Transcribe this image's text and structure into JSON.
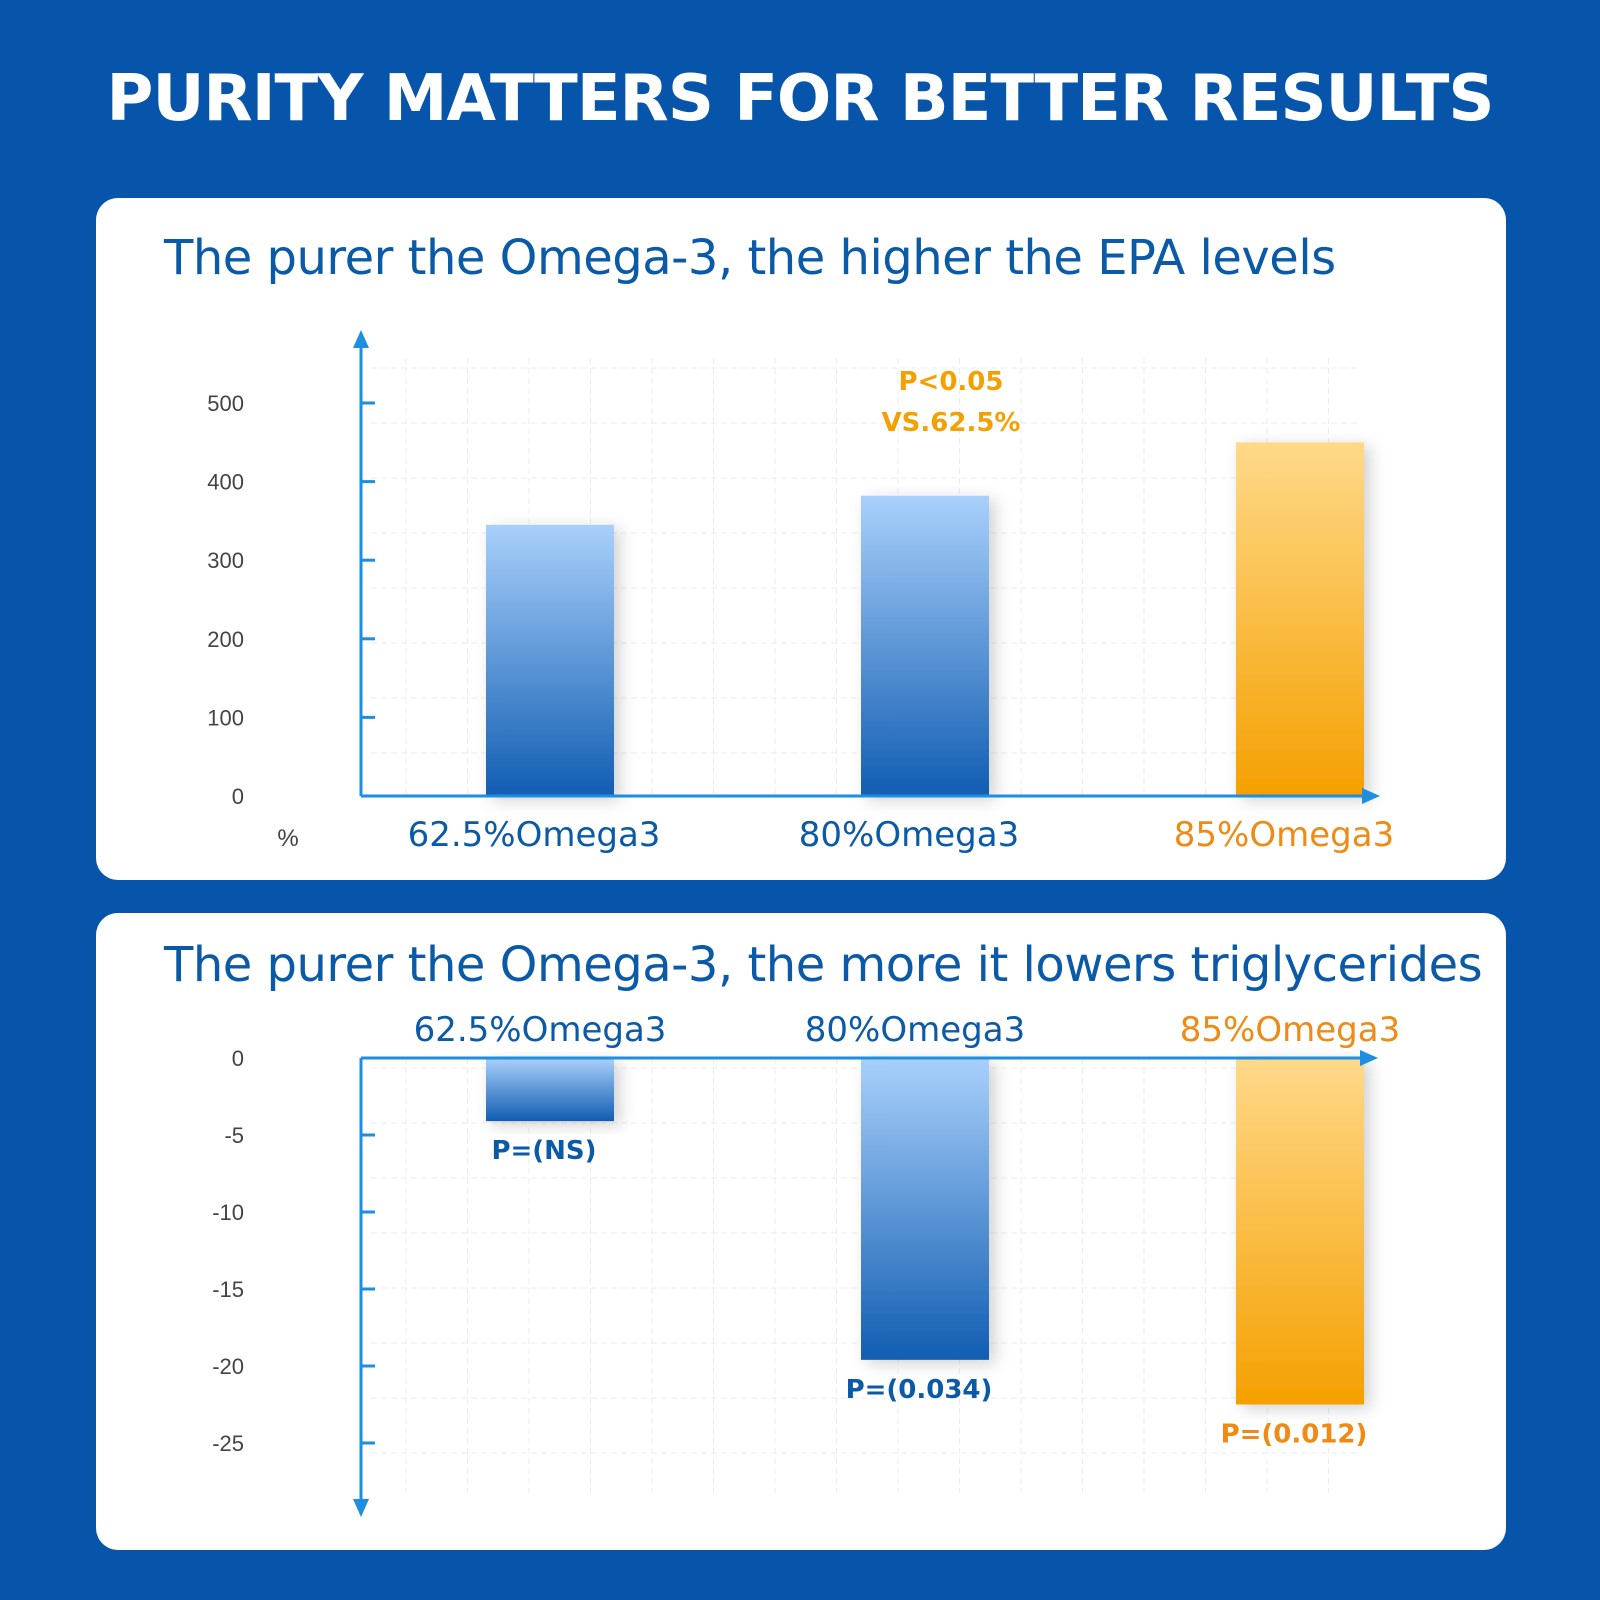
{
  "headline": "PURITY MATTERS FOR BETTER RESULTS",
  "colors": {
    "background": "#0755ab",
    "axis": "#1e8ee0",
    "blue_top": "#a9d0fb",
    "blue_bottom": "#115db2",
    "orange_top": "#ffd98a",
    "orange_bottom": "#f5a000",
    "label_blue": "#0b5aa8",
    "label_orange": "#ef8a14"
  },
  "chart_data": [
    {
      "type": "bar",
      "title": "The purer the Omega-3, the higher the EPA levels",
      "categories": [
        "62.5%Omega3",
        "80%Omega3",
        "85%Omega3"
      ],
      "values": [
        345,
        382,
        450
      ],
      "ylim": [
        0,
        500
      ],
      "yticks": [
        0,
        100,
        200,
        300,
        400,
        500
      ],
      "unit_label": "%",
      "annotation": [
        "P<0.05",
        "VS.62.5%"
      ],
      "highlight_category": "85%Omega3",
      "grid": true
    },
    {
      "type": "bar",
      "title": "The purer the Omega-3, the more it lowers triglycerides",
      "categories": [
        "62.5%Omega3",
        "80%Omega3",
        "85%Omega3"
      ],
      "values": [
        -4.1,
        -19.6,
        -22.5
      ],
      "ylim": [
        -25,
        0
      ],
      "yticks": [
        0,
        -5,
        -10,
        -15,
        -20,
        -25
      ],
      "bar_labels": [
        "P=(NS)",
        "P=(0.034)",
        "P=(0.012)"
      ],
      "highlight_category": "85%Omega3",
      "grid": true
    }
  ]
}
